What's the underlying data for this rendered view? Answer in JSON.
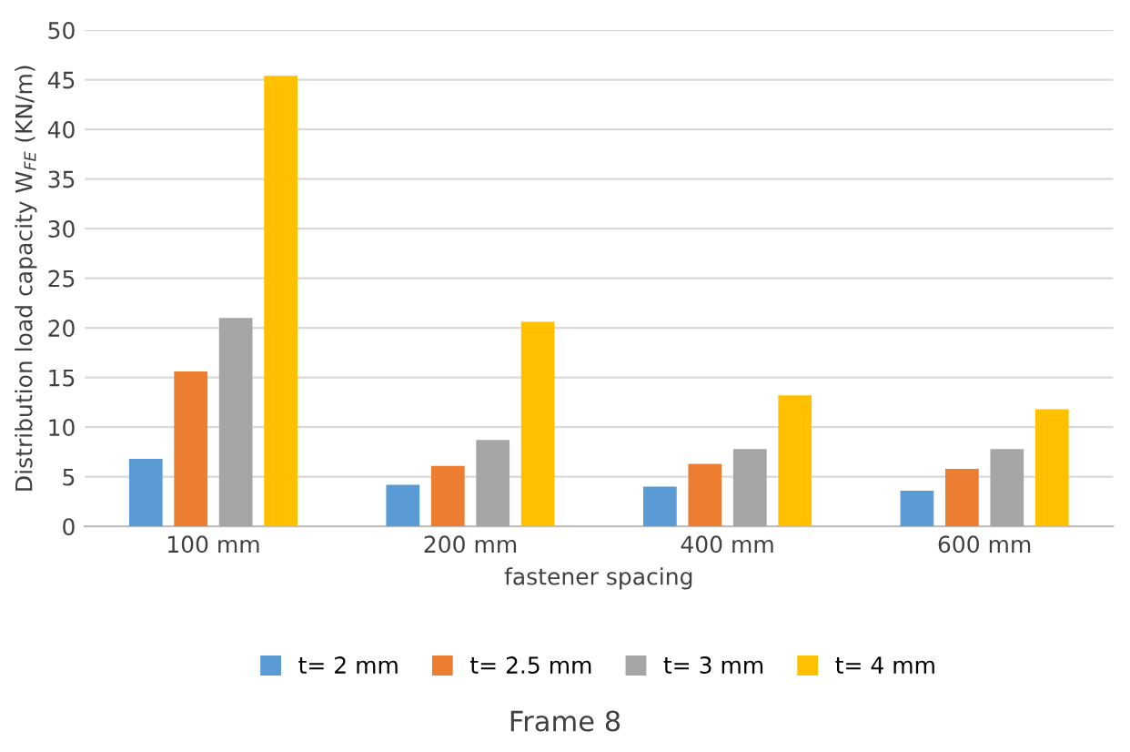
{
  "chart_data": {
    "type": "bar",
    "title": "Frame 8",
    "xlabel": "fastener spacing",
    "ylabel": "Distribution load capacity W$_{FE}$ (KN/m)",
    "categories": [
      "100 mm",
      "200 mm",
      "400 mm",
      "600 mm"
    ],
    "series": [
      {
        "name": "t= 2 mm",
        "color": "#5b9bd5",
        "values": [
          6.8,
          4.2,
          4.0,
          3.6
        ]
      },
      {
        "name": "t= 2.5 mm",
        "color": "#ed7d31",
        "values": [
          15.6,
          6.1,
          6.3,
          5.8
        ]
      },
      {
        "name": "t= 3 mm",
        "color": "#a5a5a5",
        "values": [
          21.0,
          8.7,
          7.8,
          7.8
        ]
      },
      {
        "name": "t= 4 mm",
        "color": "#ffc000",
        "values": [
          45.4,
          20.6,
          13.2,
          11.8
        ]
      }
    ],
    "ylim": [
      0,
      50
    ],
    "yticks": [
      0,
      5,
      10,
      15,
      20,
      25,
      30,
      35,
      40,
      45,
      50
    ],
    "grid": "y",
    "legend": "bottom"
  }
}
